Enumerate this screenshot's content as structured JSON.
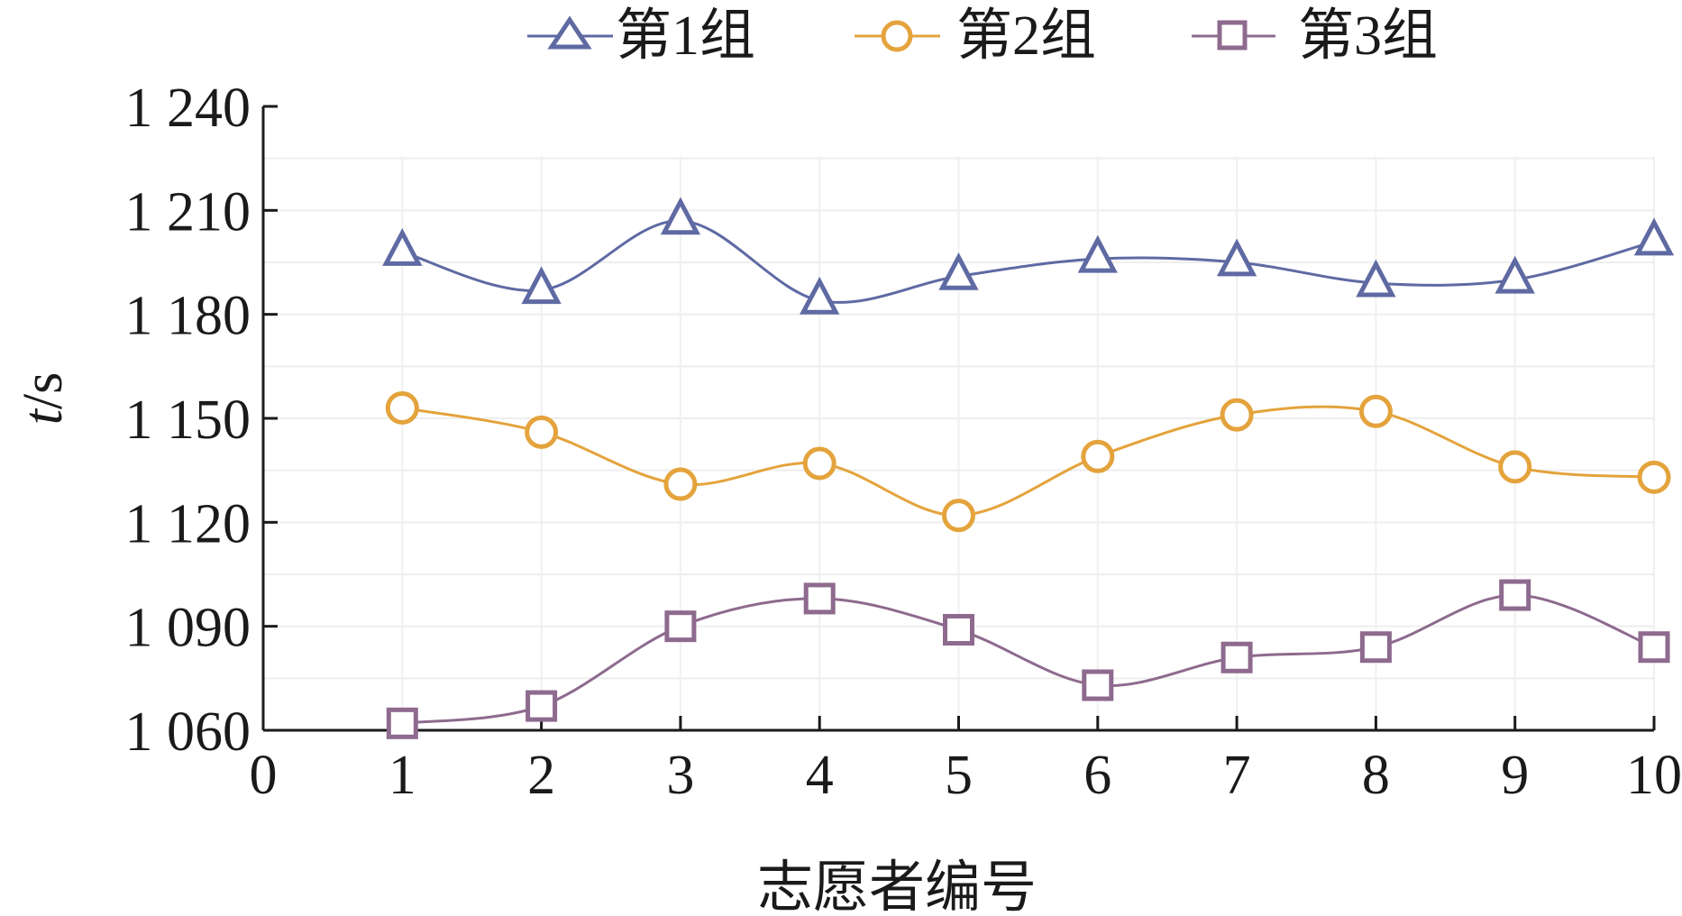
{
  "chart_data": {
    "type": "line",
    "xlabel": "志愿者编号",
    "ylabel_italic": "t",
    "ylabel_rest": "/s",
    "x_ticks": [
      "0",
      "1",
      "2",
      "3",
      "4",
      "5",
      "6",
      "7",
      "8",
      "9",
      "10"
    ],
    "y_ticks": [
      "1 060",
      "1 090",
      "1 120",
      "1 150",
      "1 180",
      "1 210",
      "1 240"
    ],
    "xlim": [
      0,
      10
    ],
    "ylim": [
      1060,
      1240
    ],
    "grid": true,
    "legend_position": "top",
    "x": [
      1,
      2,
      3,
      4,
      5,
      6,
      7,
      8,
      9,
      10
    ],
    "series": [
      {
        "name": "第1组",
        "marker": "triangle",
        "color": "#5f6aa3",
        "values": [
          1198,
          1187,
          1207,
          1184,
          1191,
          1196,
          1195,
          1189,
          1190,
          1201
        ]
      },
      {
        "name": "第2组",
        "marker": "circle",
        "color": "#e4a33c",
        "values": [
          1153,
          1146,
          1131,
          1137,
          1122,
          1139,
          1151,
          1152,
          1136,
          1133
        ]
      },
      {
        "name": "第3组",
        "marker": "square",
        "color": "#8e6a8e",
        "values": [
          1062,
          1067,
          1090,
          1098,
          1089,
          1073,
          1081,
          1084,
          1099,
          1084
        ]
      }
    ]
  }
}
